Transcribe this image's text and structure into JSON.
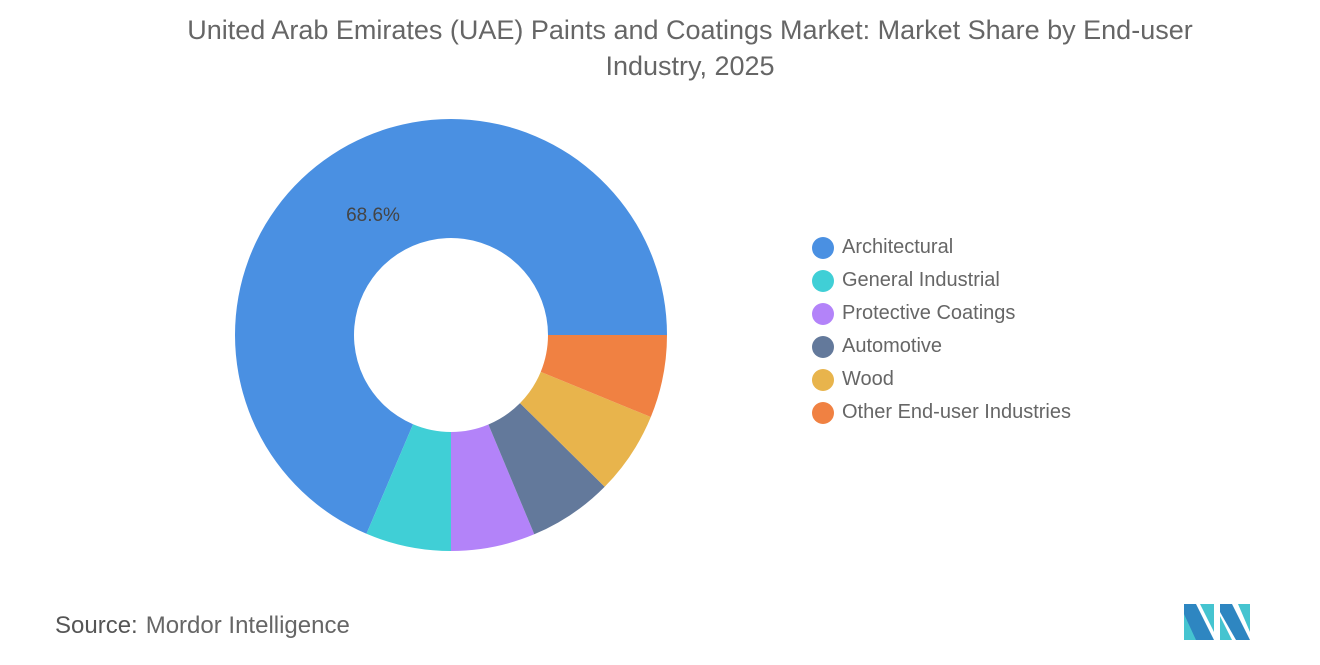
{
  "title": "United Arab Emirates (UAE) Paints and Coatings Market: Market Share by End-user Industry, 2025",
  "chart_data": {
    "type": "pie",
    "donut": true,
    "title": "United Arab Emirates (UAE) Paints and Coatings Market: Market Share by End-user Industry, 2025",
    "unit": "%",
    "legend_position": "right",
    "categories": [
      "Architectural",
      "General Industrial",
      "Protective Coatings",
      "Automotive",
      "Wood",
      "Other End-user Industries"
    ],
    "values": [
      68.6,
      6.4,
      6.3,
      6.3,
      6.2,
      6.2
    ],
    "colors": [
      "#4a90e2",
      "#40cfd6",
      "#b383f9",
      "#63799b",
      "#e8b44c",
      "#f08142"
    ],
    "data_labels": [
      "68.6%",
      "",
      "",
      "",
      "",
      ""
    ]
  },
  "source": {
    "label": "Source:",
    "value": "Mordor Intelligence"
  },
  "logo": "Mordor Intelligence logo"
}
